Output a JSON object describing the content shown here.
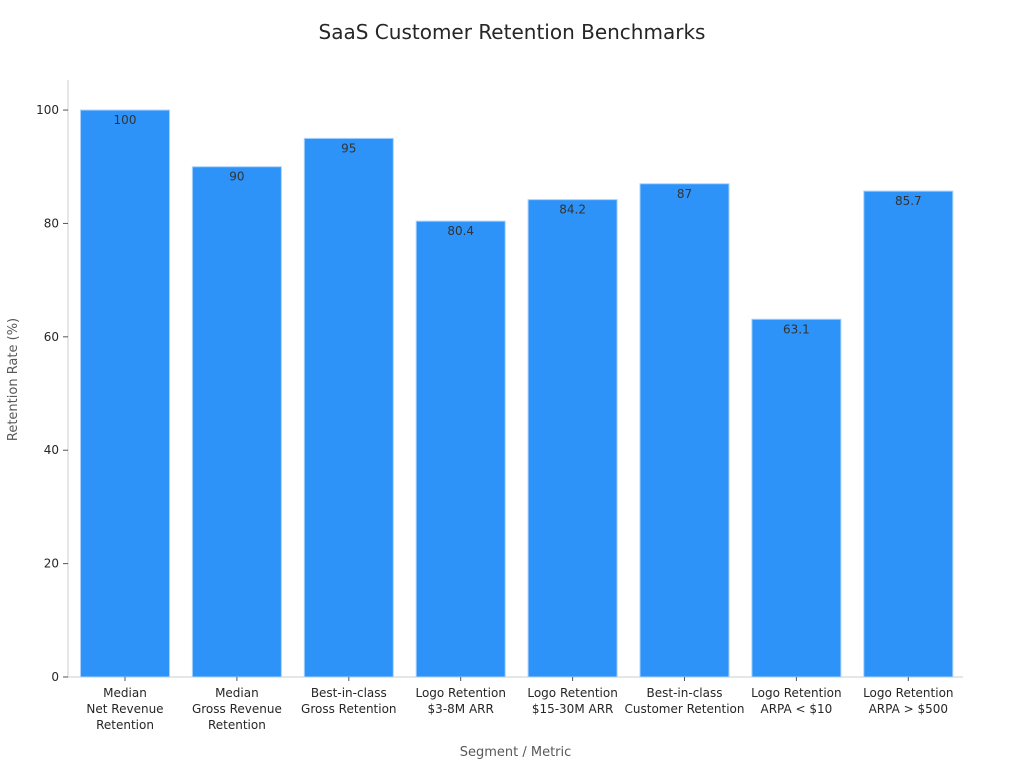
{
  "chart_data": {
    "type": "bar",
    "title": "SaaS Customer Retention Benchmarks",
    "xlabel": "Segment / Metric",
    "ylabel": "Retention Rate (%)",
    "categories": [
      [
        "Median",
        "Net Revenue",
        "Retention"
      ],
      [
        "Median",
        "Gross Revenue",
        "Retention"
      ],
      [
        "Best-in-class",
        "Gross Retention"
      ],
      [
        "Logo Retention",
        "$3-8M ARR"
      ],
      [
        "Logo Retention",
        "$15-30M ARR"
      ],
      [
        "Best-in-class",
        "Customer Retention"
      ],
      [
        "Logo Retention",
        "ARPA < $10"
      ],
      [
        "Logo Retention",
        "ARPA > $500"
      ]
    ],
    "values": [
      100,
      90,
      95,
      80.4,
      84.2,
      87,
      63.1,
      85.7
    ],
    "value_labels": [
      "100",
      "90",
      "95",
      "80.4",
      "84.2",
      "87",
      "63.1",
      "85.7"
    ],
    "yticks": [
      0,
      20,
      40,
      60,
      80,
      100
    ],
    "ylim": [
      0,
      105.3
    ],
    "grid": false,
    "legend": "none",
    "colors": {
      "bar": "#2e93f9",
      "bar_edge": "#a9d2fb",
      "axis": "#cccccc",
      "tick_text": "#262626",
      "label_text": "#595959",
      "value_text": "#333333"
    }
  }
}
